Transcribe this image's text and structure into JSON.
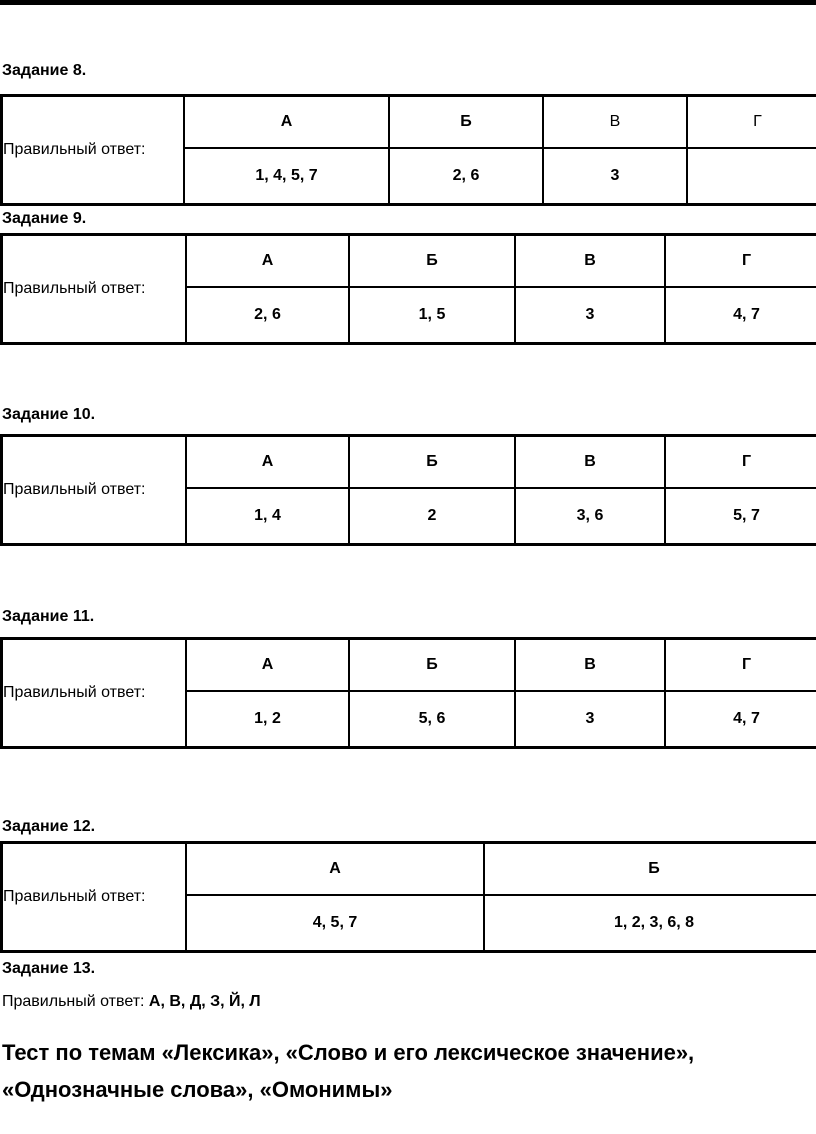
{
  "answer_label": "Правильный ответ:",
  "tasks": [
    {
      "heading": "Задание 8.",
      "headers": [
        "А",
        "Б",
        "В",
        "Г"
      ],
      "values": [
        "1, 4, 5, 7",
        "2, 6",
        "3",
        ""
      ]
    },
    {
      "heading": "Задание 9.",
      "headers": [
        "А",
        "Б",
        "В",
        "Г"
      ],
      "values": [
        "2, 6",
        "1, 5",
        "3",
        "4, 7"
      ]
    },
    {
      "heading": "Задание 10.",
      "headers": [
        "А",
        "Б",
        "В",
        "Г"
      ],
      "values": [
        "1, 4",
        "2",
        "3, 6",
        "5, 7"
      ]
    },
    {
      "heading": "Задание 11.",
      "headers": [
        "А",
        "Б",
        "В",
        "Г"
      ],
      "values": [
        "1, 2",
        "5, 6",
        "3",
        "4, 7"
      ]
    },
    {
      "heading": "Задание 12.",
      "headers": [
        "А",
        "Б"
      ],
      "values": [
        "4, 5, 7",
        "1, 2, 3, 6, 8"
      ]
    }
  ],
  "task13": {
    "heading": "Задание 13.",
    "answer": "А, В, Д, З, Й, Л"
  },
  "footer_title": {
    "line1": "Тест по темам «Лексика», «Слово и его лексическое значение»,",
    "line2": "«Однозначные слова», «Омонимы»"
  }
}
